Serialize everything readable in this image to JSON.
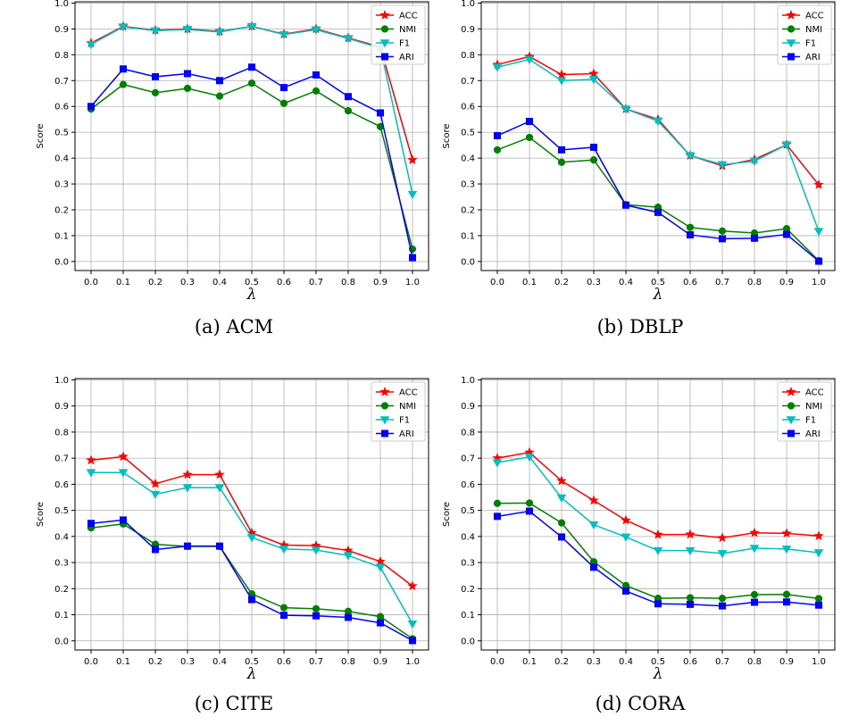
{
  "chart_data": [
    {
      "type": "line",
      "caption": "(a) ACM",
      "xlabel": "λ",
      "ylabel": "Score",
      "x": [
        0.0,
        0.1,
        0.2,
        0.3,
        0.4,
        0.5,
        0.6,
        0.7,
        0.8,
        0.9,
        1.0
      ],
      "x_ticks": [
        "0.0",
        "0.1",
        "0.2",
        "0.3",
        "0.4",
        "0.5",
        "0.6",
        "0.7",
        "0.8",
        "0.9",
        "1.0"
      ],
      "ylim": [
        0.0,
        1.0
      ],
      "y_ticks": [
        "0.0",
        "0.1",
        "0.2",
        "0.3",
        "0.4",
        "0.5",
        "0.6",
        "0.7",
        "0.8",
        "0.9",
        "1.0"
      ],
      "grid": true,
      "legend_position": "top-right",
      "series": [
        {
          "name": "ACC",
          "values": [
            0.845,
            0.91,
            0.895,
            0.9,
            0.89,
            0.91,
            0.88,
            0.9,
            0.865,
            0.83,
            0.393
          ]
        },
        {
          "name": "NMI",
          "values": [
            0.59,
            0.685,
            0.653,
            0.67,
            0.64,
            0.69,
            0.612,
            0.66,
            0.583,
            0.522,
            0.048
          ]
        },
        {
          "name": "F1",
          "values": [
            0.84,
            0.908,
            0.893,
            0.898,
            0.888,
            0.91,
            0.878,
            0.897,
            0.863,
            0.826,
            0.26
          ]
        },
        {
          "name": "ARI",
          "values": [
            0.6,
            0.745,
            0.715,
            0.727,
            0.7,
            0.752,
            0.673,
            0.722,
            0.638,
            0.575,
            0.015
          ]
        }
      ]
    },
    {
      "type": "line",
      "caption": "(b) DBLP",
      "xlabel": "λ",
      "ylabel": "Score",
      "x": [
        0.0,
        0.1,
        0.2,
        0.3,
        0.4,
        0.5,
        0.6,
        0.7,
        0.8,
        0.9,
        1.0
      ],
      "x_ticks": [
        "0.0",
        "0.1",
        "0.2",
        "0.3",
        "0.4",
        "0.5",
        "0.6",
        "0.7",
        "0.8",
        "0.9",
        "1.0"
      ],
      "ylim": [
        0.0,
        1.0
      ],
      "y_ticks": [
        "0.0",
        "0.1",
        "0.2",
        "0.3",
        "0.4",
        "0.5",
        "0.6",
        "0.7",
        "0.8",
        "0.9",
        "1.0"
      ],
      "grid": true,
      "legend_position": "top-right",
      "series": [
        {
          "name": "ACC",
          "values": [
            0.762,
            0.793,
            0.723,
            0.727,
            0.59,
            0.55,
            0.41,
            0.37,
            0.395,
            0.452,
            0.297
          ]
        },
        {
          "name": "NMI",
          "values": [
            0.432,
            0.48,
            0.384,
            0.393,
            0.22,
            0.21,
            0.132,
            0.118,
            0.11,
            0.127,
            0.003
          ]
        },
        {
          "name": "F1",
          "values": [
            0.752,
            0.782,
            0.7,
            0.705,
            0.59,
            0.543,
            0.41,
            0.375,
            0.388,
            0.452,
            0.117
          ]
        },
        {
          "name": "ARI",
          "values": [
            0.487,
            0.542,
            0.432,
            0.442,
            0.218,
            0.19,
            0.103,
            0.088,
            0.09,
            0.105,
            0.001
          ]
        }
      ]
    },
    {
      "type": "line",
      "caption": "(c) CITE",
      "xlabel": "λ",
      "ylabel": "Score",
      "x": [
        0.0,
        0.1,
        0.2,
        0.3,
        0.4,
        0.5,
        0.6,
        0.7,
        0.8,
        0.9,
        1.0
      ],
      "x_ticks": [
        "0.0",
        "0.1",
        "0.2",
        "0.3",
        "0.4",
        "0.5",
        "0.6",
        "0.7",
        "0.8",
        "0.9",
        "1.0"
      ],
      "ylim": [
        0.0,
        1.0
      ],
      "y_ticks": [
        "0.0",
        "0.1",
        "0.2",
        "0.3",
        "0.4",
        "0.5",
        "0.6",
        "0.7",
        "0.8",
        "0.9",
        "1.0"
      ],
      "grid": true,
      "legend_position": "top-right",
      "series": [
        {
          "name": "ACC",
          "values": [
            0.692,
            0.706,
            0.602,
            0.637,
            0.637,
            0.414,
            0.367,
            0.365,
            0.346,
            0.304,
            0.21
          ]
        },
        {
          "name": "NMI",
          "values": [
            0.433,
            0.448,
            0.37,
            0.362,
            0.362,
            0.18,
            0.127,
            0.123,
            0.113,
            0.093,
            0.008
          ]
        },
        {
          "name": "F1",
          "values": [
            0.645,
            0.645,
            0.562,
            0.587,
            0.587,
            0.396,
            0.352,
            0.348,
            0.327,
            0.282,
            0.065
          ]
        },
        {
          "name": "ARI",
          "values": [
            0.45,
            0.463,
            0.35,
            0.363,
            0.363,
            0.158,
            0.098,
            0.096,
            0.09,
            0.069,
            0.001
          ]
        }
      ]
    },
    {
      "type": "line",
      "caption": "(d) CORA",
      "xlabel": "λ",
      "ylabel": "Score",
      "x": [
        0.0,
        0.1,
        0.2,
        0.3,
        0.4,
        0.5,
        0.6,
        0.7,
        0.8,
        0.9,
        1.0
      ],
      "x_ticks": [
        "0.0",
        "0.1",
        "0.2",
        "0.3",
        "0.4",
        "0.5",
        "0.6",
        "0.7",
        "0.8",
        "0.9",
        "1.0"
      ],
      "ylim": [
        0.0,
        1.0
      ],
      "y_ticks": [
        "0.0",
        "0.1",
        "0.2",
        "0.3",
        "0.4",
        "0.5",
        "0.6",
        "0.7",
        "0.8",
        "0.9",
        "1.0"
      ],
      "grid": true,
      "legend_position": "top-right",
      "series": [
        {
          "name": "ACC",
          "values": [
            0.7,
            0.722,
            0.613,
            0.538,
            0.462,
            0.407,
            0.408,
            0.395,
            0.414,
            0.412,
            0.402
          ]
        },
        {
          "name": "NMI",
          "values": [
            0.527,
            0.528,
            0.452,
            0.303,
            0.212,
            0.163,
            0.165,
            0.163,
            0.177,
            0.178,
            0.162
          ]
        },
        {
          "name": "F1",
          "values": [
            0.683,
            0.705,
            0.548,
            0.445,
            0.398,
            0.346,
            0.346,
            0.335,
            0.355,
            0.352,
            0.338
          ]
        },
        {
          "name": "ARI",
          "values": [
            0.477,
            0.497,
            0.398,
            0.282,
            0.191,
            0.142,
            0.14,
            0.134,
            0.148,
            0.149,
            0.137
          ]
        }
      ]
    }
  ],
  "styles": {
    "colors": {
      "ACC": "#ff0000",
      "NMI": "#008000",
      "F1": "#00bfbf",
      "ARI": "#0000ff"
    },
    "markers": {
      "ACC": "star",
      "NMI": "circle",
      "F1": "triangle-down",
      "ARI": "square"
    },
    "grid_color": "#b0b0b0"
  }
}
